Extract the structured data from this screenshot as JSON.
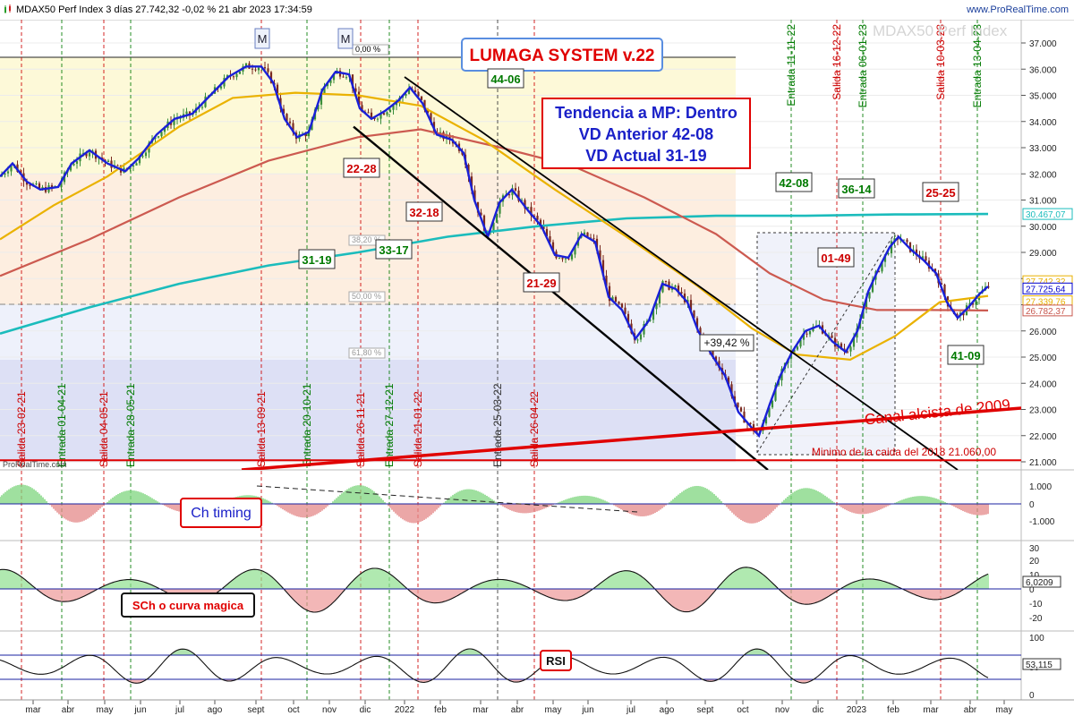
{
  "header": {
    "title": "MDAX50 Perf Index 3 días 27.742,32 -0,02 % 21 abr 2023 17:34:59",
    "brand": "www.ProRealTime.com",
    "watermark": "MDAX50 Perf Index"
  },
  "chart_data": {
    "type": "candlestick",
    "instrument": "MDAX50 Perf Index",
    "price_axis": {
      "ylim": [
        21000,
        37500
      ],
      "ticks": [
        "37.000",
        "36.000",
        "35.000",
        "34.000",
        "33.000",
        "32.000",
        "31.000",
        "30.000",
        "29.000",
        "28.000",
        "27.000",
        "26.000",
        "25.000",
        "24.000",
        "23.000",
        "22.000",
        "21.000"
      ]
    },
    "x_tick_labels": [
      "mar",
      "abr",
      "may",
      "jun",
      "jul",
      "ago",
      "sept",
      "oct",
      "nov",
      "dic",
      "2022",
      "feb",
      "mar",
      "abr",
      "may",
      "jun",
      "jul",
      "ago",
      "sept",
      "oct",
      "nov",
      "dic",
      "2023",
      "feb",
      "mar",
      "abr",
      "may"
    ],
    "price_labels": [
      {
        "text": "30.467,07",
        "color": "#1bbcbc"
      },
      {
        "text": "27.742,32",
        "color": "#e8b000"
      },
      {
        "text": "27.725,64",
        "color": "#0000cc"
      },
      {
        "text": "27.339,76",
        "color": "#e8b000"
      },
      {
        "text": "26.782,37",
        "color": "#c8584f"
      }
    ],
    "fib_labels": [
      "0,00 %",
      "38,20 %",
      "50,00 %",
      "61,80 %"
    ],
    "vertical_signals": [
      {
        "text": "Salida 23-02-21",
        "color": "#cc0000"
      },
      {
        "text": "Entrada 01-04-21",
        "color": "#007a00"
      },
      {
        "text": "Salida 04-05-21",
        "color": "#cc0000"
      },
      {
        "text": "Entrada 28-05-21",
        "color": "#007a00"
      },
      {
        "text": "Salida 13-09-21",
        "color": "#cc0000"
      },
      {
        "text": "Entrada 20-10-21",
        "color": "#007a00"
      },
      {
        "text": "Salida 26-11-21",
        "color": "#cc0000"
      },
      {
        "text": "Entrada 27-12-21",
        "color": "#007a00"
      },
      {
        "text": "Salida 21-01-22",
        "color": "#cc0000"
      },
      {
        "text": "Entrada 25-03-22",
        "color": "#333333"
      },
      {
        "text": "Salida 26-04-22",
        "color": "#cc0000"
      },
      {
        "text": "Entrada 11-11-22",
        "color": "#007a00"
      },
      {
        "text": "Salida 16-12-22",
        "color": "#cc0000"
      },
      {
        "text": "Entrada 06-01-23",
        "color": "#007a00"
      },
      {
        "text": "Salida 10-03-23",
        "color": "#cc0000"
      },
      {
        "text": "Entrada 13-04-23",
        "color": "#007a00"
      }
    ],
    "score_boxes": [
      {
        "text": "44-06",
        "color": "#007a00"
      },
      {
        "text": "22-28",
        "color": "#cc0000"
      },
      {
        "text": "32-18",
        "color": "#cc0000"
      },
      {
        "text": "31-19",
        "color": "#007a00"
      },
      {
        "text": "33-17",
        "color": "#007a00"
      },
      {
        "text": "21-29",
        "color": "#cc0000"
      },
      {
        "text": "42-08",
        "color": "#007a00"
      },
      {
        "text": "36-14",
        "color": "#007a00"
      },
      {
        "text": "25-25",
        "color": "#cc0000"
      },
      {
        "text": "01-49",
        "color": "#cc0000"
      },
      {
        "text": "41-09",
        "color": "#007a00"
      }
    ],
    "annotations": {
      "system": "LUMAGA SYSTEM v.22",
      "trend_lines": [
        "Tendencia a MP: Dentro",
        "VD Anterior 42-08",
        "VD Actual 31-19"
      ],
      "rise": "+39,42 %",
      "channel": "Canal alcista de 2009",
      "minimum": "Minimo de la caida del 2018   21.060,00",
      "marker": "M"
    },
    "indicators": [
      {
        "name": "Ch timing",
        "ticks": [
          "1.000",
          "0",
          "-1.000"
        ]
      },
      {
        "name": "SCh o curva magica",
        "ticks": [
          "30",
          "20",
          "10",
          "0",
          "-10",
          "-20"
        ],
        "value_label": "6,0209"
      },
      {
        "name": "RSI",
        "ticks": [
          "100",
          "50",
          "0"
        ],
        "value_label": "53,115"
      }
    ]
  }
}
